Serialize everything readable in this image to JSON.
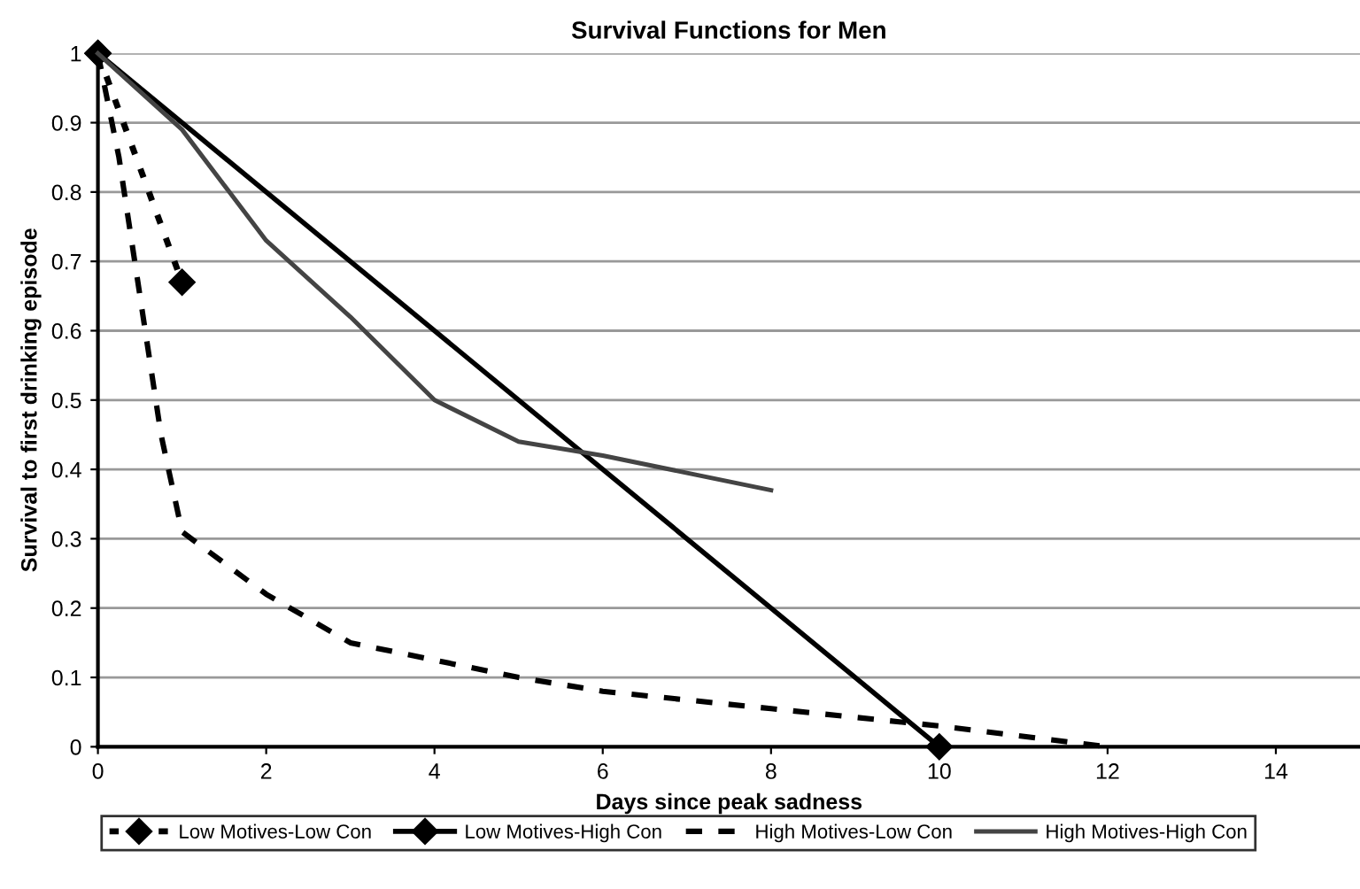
{
  "chart_data": {
    "type": "line",
    "title": "Survival Functions for Men",
    "xlabel": "Days since peak sadness",
    "ylabel": "Survival to first drinking episode",
    "xlim": [
      0,
      15
    ],
    "xticks": [
      0,
      2,
      4,
      6,
      8,
      10,
      12,
      14
    ],
    "ylim": [
      0,
      1
    ],
    "yticks": [
      0,
      0.1,
      0.2,
      0.3,
      0.4,
      0.5,
      0.6,
      0.7,
      0.8,
      0.9,
      1
    ],
    "grid": "y",
    "legend": "bottom",
    "series": [
      {
        "name": "Low Motives-Low Con",
        "color": "#000000",
        "line_style": "dotted",
        "marker": "diamond",
        "x": [
          0,
          1
        ],
        "values": [
          1,
          0.67
        ]
      },
      {
        "name": "Low Motives-High Con",
        "color": "#000000",
        "line_style": "solid",
        "marker": "diamond",
        "x": [
          0,
          10
        ],
        "values": [
          1,
          0
        ]
      },
      {
        "name": "High Motives-Low Con",
        "color": "#000000",
        "line_style": "dashed",
        "marker": "none",
        "x": [
          0,
          0.25,
          0.5,
          0.75,
          1,
          2,
          3,
          4,
          5,
          6,
          8,
          10,
          12
        ],
        "values": [
          1,
          0.85,
          0.65,
          0.45,
          0.31,
          0.22,
          0.15,
          0.125,
          0.1,
          0.08,
          0.055,
          0.03,
          0
        ]
      },
      {
        "name": "High Motives-High Con",
        "color": "#444444",
        "line_style": "solid",
        "marker": "none",
        "x": [
          0,
          1,
          2,
          3,
          4,
          5,
          6,
          8
        ],
        "values": [
          1,
          0.89,
          0.73,
          0.62,
          0.5,
          0.44,
          0.42,
          0.37
        ]
      }
    ]
  }
}
